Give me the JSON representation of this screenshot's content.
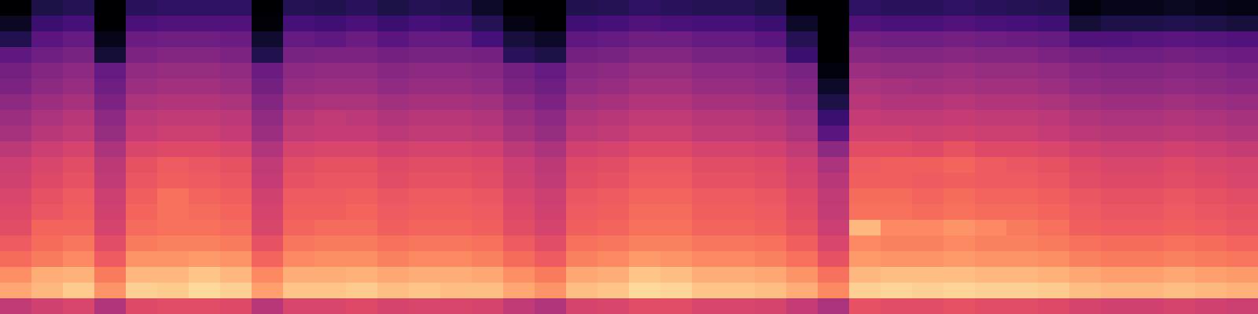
{
  "chart_data": {
    "type": "heatmap",
    "color": "magma",
    "tick_labels": false,
    "zlim": [
      -80,
      0
    ],
    "values": [
      [
        -80,
        -75,
        -69,
        -57,
        -53,
        -51,
        -48,
        -45,
        -43,
        -39,
        -36,
        -35,
        -33,
        -32,
        -31,
        -28,
        -25,
        -19,
        -15,
        -38
      ],
      [
        -70,
        -64,
        -58,
        -54,
        -50,
        -48,
        -45,
        -42,
        -40,
        -36,
        -33,
        -32,
        -30,
        -29,
        -26,
        -25,
        -22,
        -14,
        -12,
        -35
      ],
      [
        -68,
        -62,
        -56,
        -52,
        -48,
        -46,
        -43,
        -40,
        -38,
        -34,
        -31,
        -30,
        -28,
        -27,
        -26,
        -23,
        -20,
        -13,
        -9,
        -33
      ],
      [
        -80,
        -80,
        -76,
        -72,
        -56,
        -54,
        -51,
        -48,
        -46,
        -42,
        -39,
        -38,
        -36,
        -35,
        -34,
        -31,
        -28,
        -22,
        -18,
        -41
      ],
      [
        -67,
        -61,
        -55,
        -51,
        -47,
        -45,
        -42,
        -39,
        -37,
        -33,
        -30,
        -29,
        -27,
        -26,
        -25,
        -22,
        -18,
        -12,
        -8,
        -32
      ],
      [
        -66,
        -60,
        -54,
        -50,
        -46,
        -44,
        -41,
        -38,
        -36,
        -32,
        -28,
        -27,
        -24,
        -24,
        -24,
        -21,
        -18,
        -12,
        -9,
        -31
      ],
      [
        -66,
        -60,
        -54,
        -50,
        -46,
        -44,
        -41,
        -38,
        -36,
        -32,
        -29,
        -28,
        -26,
        -25,
        -24,
        -21,
        -17,
        -10,
        -6,
        -31
      ],
      [
        -66,
        -60,
        -55,
        -51,
        -47,
        -45,
        -42,
        -39,
        -37,
        -33,
        -30,
        -29,
        -27,
        -26,
        -25,
        -22,
        -18,
        -12,
        -8,
        -32
      ],
      [
        -80,
        -79,
        -73,
        -69,
        -55,
        -53,
        -50,
        -47,
        -45,
        -41,
        -38,
        -37,
        -35,
        -34,
        -33,
        -30,
        -26,
        -20,
        -16,
        -40
      ],
      [
        -68,
        -62,
        -56,
        -52,
        -48,
        -46,
        -43,
        -40,
        -38,
        -34,
        -31,
        -30,
        -28,
        -27,
        -26,
        -23,
        -20,
        -14,
        -10,
        -33
      ],
      [
        -69,
        -63,
        -57,
        -51,
        -47,
        -45,
        -42,
        -38,
        -37,
        -33,
        -30,
        -29,
        -28,
        -27,
        -25,
        -22,
        -19,
        -14,
        -10,
        -33
      ],
      [
        -67,
        -61,
        -55,
        -51,
        -47,
        -45,
        -42,
        -39,
        -37,
        -33,
        -30,
        -29,
        -27,
        -26,
        -25,
        -22,
        -19,
        -13,
        -9,
        -32
      ],
      [
        -70,
        -64,
        -58,
        -53,
        -49,
        -47,
        -44,
        -41,
        -39,
        -35,
        -32,
        -31,
        -29,
        -28,
        -27,
        -24,
        -21,
        -15,
        -11,
        -34
      ],
      [
        -68,
        -62,
        -56,
        -52,
        -48,
        -46,
        -43,
        -40,
        -38,
        -34,
        -31,
        -30,
        -28,
        -27,
        -26,
        -23,
        -20,
        -14,
        -10,
        -33
      ],
      [
        -69,
        -63,
        -56,
        -52,
        -48,
        -46,
        -43,
        -40,
        -38,
        -34,
        -31,
        -30,
        -28,
        -27,
        -26,
        -23,
        -20,
        -14,
        -11,
        -33
      ],
      [
        -74,
        -68,
        -62,
        -53,
        -49,
        -47,
        -44,
        -41,
        -39,
        -35,
        -32,
        -31,
        -29,
        -28,
        -27,
        -24,
        -21,
        -15,
        -11,
        -34
      ],
      [
        -80,
        -77,
        -71,
        -67,
        -53,
        -51,
        -48,
        -45,
        -43,
        -39,
        -36,
        -35,
        -33,
        -32,
        -31,
        -28,
        -25,
        -19,
        -15,
        -38
      ],
      [
        -80,
        -80,
        -74,
        -70,
        -56,
        -54,
        -51,
        -48,
        -46,
        -42,
        -39,
        -38,
        -36,
        -35,
        -34,
        -31,
        -28,
        -22,
        -18,
        -41
      ],
      [
        -69,
        -63,
        -57,
        -53,
        -49,
        -47,
        -44,
        -41,
        -39,
        -35,
        -32,
        -31,
        -29,
        -28,
        -27,
        -24,
        -21,
        -15,
        -11,
        -34
      ],
      [
        -68,
        -62,
        -56,
        -52,
        -48,
        -46,
        -43,
        -40,
        -38,
        -34,
        -31,
        -30,
        -28,
        -27,
        -26,
        -23,
        -20,
        -14,
        -10,
        -33
      ],
      [
        -66,
        -60,
        -54,
        -50,
        -46,
        -44,
        -41,
        -38,
        -36,
        -32,
        -29,
        -28,
        -26,
        -25,
        -24,
        -21,
        -17,
        -10,
        -6,
        -31
      ],
      [
        -67,
        -61,
        -54,
        -50,
        -46,
        -44,
        -41,
        -38,
        -36,
        -32,
        -29,
        -28,
        -26,
        -25,
        -24,
        -21,
        -18,
        -11,
        -7,
        -31
      ],
      [
        -68,
        -62,
        -56,
        -52,
        -48,
        -46,
        -43,
        -40,
        -38,
        -34,
        -31,
        -30,
        -28,
        -27,
        -26,
        -23,
        -20,
        -14,
        -10,
        -33
      ],
      [
        -68,
        -62,
        -56,
        -52,
        -48,
        -46,
        -43,
        -40,
        -38,
        -34,
        -31,
        -30,
        -28,
        -27,
        -26,
        -23,
        -20,
        -14,
        -10,
        -33
      ],
      [
        -70,
        -64,
        -58,
        -53,
        -49,
        -47,
        -44,
        -41,
        -39,
        -35,
        -32,
        -31,
        -29,
        -28,
        -27,
        -24,
        -21,
        -15,
        -11,
        -34
      ],
      [
        -80,
        -74,
        -68,
        -64,
        -52,
        -50,
        -47,
        -44,
        -42,
        -38,
        -35,
        -34,
        -32,
        -31,
        -30,
        -27,
        -24,
        -18,
        -14,
        -37
      ],
      [
        -80,
        -80,
        -80,
        -80,
        -78,
        -74,
        -70,
        -64,
        -58,
        -48,
        -42,
        -40,
        -38,
        -37,
        -36,
        -33,
        -30,
        -24,
        -20,
        -42
      ],
      [
        -66,
        -60,
        -53,
        -49,
        -45,
        -42,
        -40,
        -37,
        -35,
        -31,
        -28,
        -27,
        -25,
        -24,
        -12,
        -20,
        -17,
        -12,
        -8,
        -30
      ],
      [
        -67,
        -61,
        -54,
        -50,
        -46,
        -43,
        -41,
        -38,
        -35,
        -31,
        -27,
        -27,
        -25,
        -24,
        -20,
        -21,
        -18,
        -11,
        -7,
        -31
      ],
      [
        -67,
        -61,
        -54,
        -50,
        -46,
        -44,
        -41,
        -38,
        -36,
        -32,
        -27,
        -28,
        -26,
        -25,
        -20,
        -21,
        -18,
        -11,
        -8,
        -31
      ],
      [
        -66,
        -60,
        -53,
        -49,
        -45,
        -43,
        -40,
        -37,
        -35,
        -30,
        -26,
        -27,
        -25,
        -24,
        -18,
        -20,
        -17,
        -11,
        -7,
        -30
      ],
      [
        -67,
        -61,
        -54,
        -50,
        -46,
        -44,
        -41,
        -38,
        -36,
        -32,
        -28,
        -28,
        -26,
        -25,
        -20,
        -21,
        -18,
        -12,
        -8,
        -31
      ],
      [
        -68,
        -62,
        -55,
        -50,
        -46,
        -44,
        -41,
        -38,
        -36,
        -32,
        -29,
        -28,
        -26,
        -25,
        -22,
        -21,
        -18,
        -12,
        -8,
        -31
      ],
      [
        -69,
        -63,
        -56,
        -51,
        -47,
        -45,
        -42,
        -39,
        -37,
        -33,
        -30,
        -29,
        -27,
        -26,
        -24,
        -22,
        -19,
        -13,
        -9,
        -32
      ],
      [
        -78,
        -72,
        -60,
        -53,
        -49,
        -47,
        -44,
        -41,
        -39,
        -35,
        -32,
        -31,
        -29,
        -28,
        -27,
        -24,
        -21,
        -15,
        -11,
        -34
      ],
      [
        -76,
        -70,
        -60,
        -54,
        -50,
        -48,
        -45,
        -42,
        -40,
        -36,
        -33,
        -32,
        -30,
        -29,
        -28,
        -25,
        -22,
        -16,
        -12,
        -35
      ],
      [
        -76,
        -70,
        -59,
        -54,
        -50,
        -48,
        -45,
        -42,
        -40,
        -36,
        -33,
        -32,
        -30,
        -29,
        -28,
        -25,
        -22,
        -16,
        -12,
        -35
      ],
      [
        -75,
        -69,
        -58,
        -53,
        -49,
        -47,
        -44,
        -41,
        -39,
        -35,
        -32,
        -31,
        -29,
        -28,
        -27,
        -24,
        -21,
        -15,
        -11,
        -34
      ],
      [
        -76,
        -70,
        -59,
        -54,
        -50,
        -48,
        -45,
        -42,
        -40,
        -36,
        -33,
        -32,
        -30,
        -29,
        -28,
        -25,
        -22,
        -16,
        -12,
        -35
      ],
      [
        -77,
        -71,
        -60,
        -55,
        -51,
        -49,
        -46,
        -43,
        -41,
        -37,
        -34,
        -33,
        -31,
        -30,
        -29,
        -26,
        -23,
        -17,
        -13,
        -36
      ]
    ]
  }
}
